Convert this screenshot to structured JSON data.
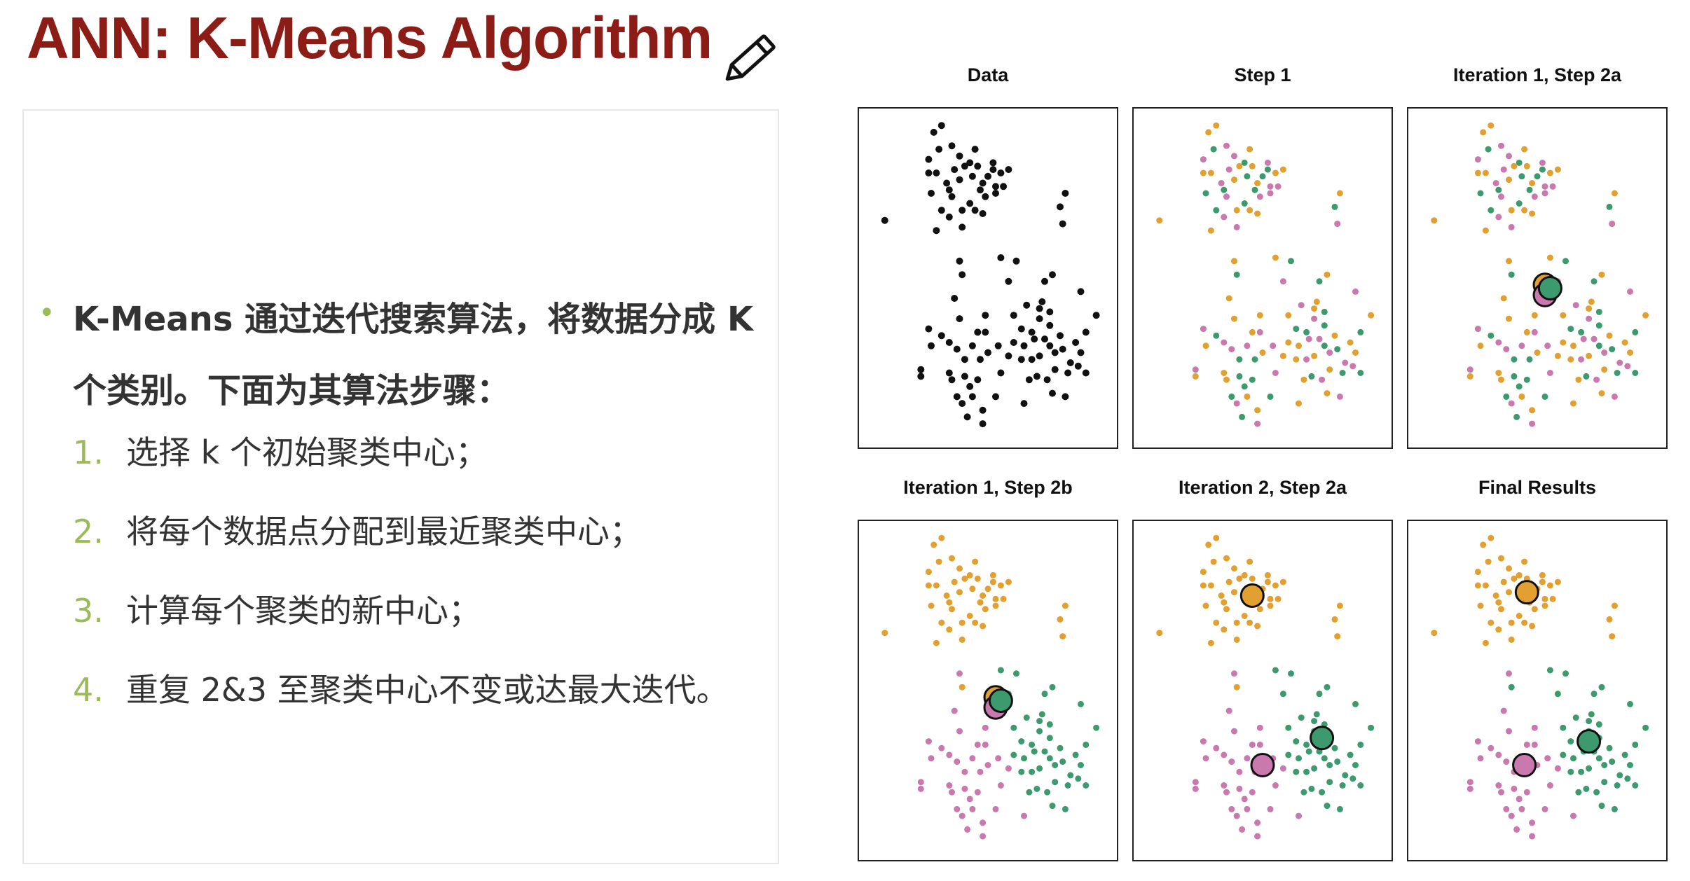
{
  "slide": {
    "title": "ANN: K-Means Algorithm",
    "bullet": "K-Means 通过迭代搜索算法，将数据分成 K 个类别。下面为其算法步骤：",
    "bullet_marker": "•",
    "steps": [
      {
        "num": "1.",
        "text": "选择 k 个初始聚类中心；"
      },
      {
        "num": "2.",
        "text": "将每个数据点分配到最近聚类中心；"
      },
      {
        "num": "3.",
        "text": "计算每个聚类的新中心；"
      },
      {
        "num": "4.",
        "text": "重复 2&3 至聚类中心不变或达最大迭代。"
      }
    ]
  },
  "colors": {
    "title": "#8c1c16",
    "accent": "#9bbb59",
    "point_unassigned": "#111111",
    "cluster_orange": "#e1a030",
    "cluster_green": "#3d9a6e",
    "cluster_pink": "#c979ad"
  },
  "icons": {
    "edit": "pencil-icon"
  },
  "chart_data": {
    "type": "scatter",
    "panels": [
      {
        "title": "Data",
        "mode": "data"
      },
      {
        "title": "Step 1",
        "mode": "random"
      },
      {
        "title": "Iteration 1, Step 2a",
        "mode": "random",
        "centroids": [
          {
            "c": 0,
            "x": 0.53,
            "y": 0.52
          },
          {
            "c": 2,
            "x": 0.53,
            "y": 0.55
          },
          {
            "c": 1,
            "x": 0.55,
            "y": 0.53
          }
        ]
      },
      {
        "title": "Iteration 1, Step 2b",
        "mode": "near",
        "centroids": [
          {
            "c": 0,
            "x": 0.53,
            "y": 0.52
          },
          {
            "c": 2,
            "x": 0.53,
            "y": 0.55
          },
          {
            "c": 1,
            "x": 0.55,
            "y": 0.53
          }
        ]
      },
      {
        "title": "Iteration 2, Step 2a",
        "mode": "near",
        "centroids": [
          {
            "c": 0,
            "x": 0.46,
            "y": 0.22
          },
          {
            "c": 1,
            "x": 0.73,
            "y": 0.64
          },
          {
            "c": 2,
            "x": 0.5,
            "y": 0.72
          }
        ]
      },
      {
        "title": "Final Results",
        "mode": "final",
        "centroids": [
          {
            "c": 0,
            "x": 0.46,
            "y": 0.21
          },
          {
            "c": 1,
            "x": 0.7,
            "y": 0.65
          },
          {
            "c": 2,
            "x": 0.45,
            "y": 0.72
          }
        ]
      }
    ],
    "points": [
      [
        0.1,
        0.33
      ],
      [
        0.27,
        0.15
      ],
      [
        0.32,
        0.05
      ],
      [
        0.36,
        0.11
      ],
      [
        0.31,
        0.12
      ],
      [
        0.27,
        0.19
      ],
      [
        0.39,
        0.14
      ],
      [
        0.43,
        0.16
      ],
      [
        0.46,
        0.17
      ],
      [
        0.52,
        0.16
      ],
      [
        0.55,
        0.19
      ],
      [
        0.56,
        0.23
      ],
      [
        0.44,
        0.2
      ],
      [
        0.41,
        0.17
      ],
      [
        0.36,
        0.26
      ],
      [
        0.3,
        0.19
      ],
      [
        0.28,
        0.25
      ],
      [
        0.34,
        0.22
      ],
      [
        0.39,
        0.21
      ],
      [
        0.5,
        0.2
      ],
      [
        0.49,
        0.26
      ],
      [
        0.48,
        0.22
      ],
      [
        0.47,
        0.24
      ],
      [
        0.53,
        0.25
      ],
      [
        0.58,
        0.18
      ],
      [
        0.43,
        0.28
      ],
      [
        0.48,
        0.31
      ],
      [
        0.35,
        0.32
      ],
      [
        0.4,
        0.3
      ],
      [
        0.32,
        0.3
      ],
      [
        0.3,
        0.36
      ],
      [
        0.53,
        0.23
      ],
      [
        0.45,
        0.12
      ],
      [
        0.52,
        0.18
      ],
      [
        0.37,
        0.18
      ],
      [
        0.29,
        0.07
      ],
      [
        0.8,
        0.25
      ],
      [
        0.78,
        0.29
      ],
      [
        0.79,
        0.34
      ],
      [
        0.45,
        0.3
      ],
      [
        0.35,
        0.24
      ],
      [
        0.4,
        0.35
      ],
      [
        0.39,
        0.45
      ],
      [
        0.4,
        0.49
      ],
      [
        0.37,
        0.56
      ],
      [
        0.27,
        0.65
      ],
      [
        0.28,
        0.7
      ],
      [
        0.32,
        0.67
      ],
      [
        0.38,
        0.71
      ],
      [
        0.39,
        0.62
      ],
      [
        0.41,
        0.74
      ],
      [
        0.44,
        0.7
      ],
      [
        0.46,
        0.66
      ],
      [
        0.47,
        0.74
      ],
      [
        0.5,
        0.72
      ],
      [
        0.49,
        0.66
      ],
      [
        0.35,
        0.78
      ],
      [
        0.38,
        0.85
      ],
      [
        0.4,
        0.87
      ],
      [
        0.44,
        0.85
      ],
      [
        0.46,
        0.8
      ],
      [
        0.55,
        0.78
      ],
      [
        0.49,
        0.61
      ],
      [
        0.41,
        0.79
      ],
      [
        0.36,
        0.8
      ],
      [
        0.24,
        0.77
      ],
      [
        0.24,
        0.79
      ],
      [
        0.42,
        0.91
      ],
      [
        0.48,
        0.93
      ],
      [
        0.48,
        0.89
      ],
      [
        0.43,
        0.82
      ],
      [
        0.54,
        0.7
      ],
      [
        0.58,
        0.73
      ],
      [
        0.53,
        0.85
      ],
      [
        0.64,
        0.87
      ],
      [
        0.35,
        0.69
      ],
      [
        0.55,
        0.44
      ],
      [
        0.61,
        0.45
      ],
      [
        0.58,
        0.51
      ],
      [
        0.6,
        0.61
      ],
      [
        0.63,
        0.65
      ],
      [
        0.65,
        0.58
      ],
      [
        0.71,
        0.57
      ],
      [
        0.74,
        0.6
      ],
      [
        0.64,
        0.7
      ],
      [
        0.68,
        0.68
      ],
      [
        0.7,
        0.73
      ],
      [
        0.74,
        0.7
      ],
      [
        0.76,
        0.72
      ],
      [
        0.78,
        0.67
      ],
      [
        0.79,
        0.71
      ],
      [
        0.82,
        0.75
      ],
      [
        0.84,
        0.69
      ],
      [
        0.88,
        0.66
      ],
      [
        0.92,
        0.61
      ],
      [
        0.86,
        0.54
      ],
      [
        0.75,
        0.49
      ],
      [
        0.72,
        0.51
      ],
      [
        0.67,
        0.74
      ],
      [
        0.66,
        0.8
      ],
      [
        0.69,
        0.79
      ],
      [
        0.73,
        0.8
      ],
      [
        0.76,
        0.77
      ],
      [
        0.81,
        0.78
      ],
      [
        0.75,
        0.84
      ],
      [
        0.8,
        0.85
      ],
      [
        0.86,
        0.72
      ],
      [
        0.88,
        0.78
      ],
      [
        0.7,
        0.62
      ],
      [
        0.6,
        0.69
      ],
      [
        0.67,
        0.66
      ],
      [
        0.72,
        0.68
      ],
      [
        0.63,
        0.74
      ],
      [
        0.74,
        0.64
      ],
      [
        0.7,
        0.59
      ],
      [
        0.85,
        0.76
      ]
    ],
    "random_assign": [
      0,
      2,
      0,
      2,
      1,
      0,
      2,
      1,
      0,
      2,
      0,
      2,
      1,
      0,
      2,
      0,
      1,
      2,
      0,
      1,
      2,
      0,
      1,
      2,
      0,
      1,
      0,
      2,
      0,
      1,
      0,
      2,
      0,
      1,
      2,
      0,
      0,
      1,
      2,
      0,
      1,
      2,
      0,
      1,
      0,
      2,
      0,
      1,
      2,
      0,
      1,
      2,
      0,
      1,
      0,
      2,
      0,
      1,
      2,
      0,
      1,
      2,
      0,
      1,
      0,
      2,
      0,
      1,
      2,
      0,
      1,
      2,
      0,
      1,
      0,
      2,
      0,
      1,
      2,
      0,
      1,
      2,
      0,
      1,
      0,
      2,
      0,
      1,
      2,
      0,
      1,
      2,
      0,
      1,
      0,
      2,
      0,
      1,
      2,
      0,
      1,
      2,
      0,
      1,
      0,
      2,
      0,
      1,
      2,
      0,
      1,
      2,
      0,
      1,
      0,
      2
    ],
    "near_assign": [
      0,
      0,
      0,
      0,
      0,
      0,
      0,
      0,
      0,
      0,
      0,
      0,
      0,
      0,
      0,
      0,
      0,
      0,
      0,
      0,
      0,
      0,
      0,
      0,
      0,
      0,
      0,
      0,
      0,
      0,
      0,
      0,
      0,
      0,
      0,
      0,
      0,
      0,
      0,
      0,
      0,
      0,
      2,
      0,
      2,
      2,
      2,
      2,
      2,
      2,
      2,
      2,
      2,
      2,
      2,
      2,
      2,
      2,
      2,
      2,
      2,
      2,
      2,
      2,
      2,
      2,
      2,
      2,
      2,
      2,
      2,
      2,
      2,
      2,
      2,
      2,
      1,
      1,
      1,
      1,
      1,
      1,
      1,
      1,
      1,
      1,
      1,
      1,
      1,
      1,
      1,
      1,
      1,
      1,
      1,
      1,
      1,
      1,
      1,
      1,
      1,
      1,
      1,
      1,
      1,
      1,
      1,
      1,
      1,
      1,
      1,
      1,
      1,
      1,
      1,
      1
    ],
    "final_assign": [
      0,
      0,
      0,
      0,
      0,
      0,
      0,
      0,
      0,
      0,
      0,
      0,
      0,
      0,
      0,
      0,
      0,
      0,
      0,
      0,
      0,
      0,
      0,
      0,
      0,
      0,
      0,
      0,
      0,
      0,
      0,
      0,
      0,
      0,
      0,
      0,
      0,
      0,
      0,
      0,
      0,
      0,
      2,
      1,
      2,
      2,
      2,
      2,
      2,
      2,
      2,
      2,
      2,
      2,
      2,
      2,
      2,
      2,
      2,
      2,
      2,
      2,
      2,
      2,
      2,
      2,
      2,
      2,
      2,
      2,
      2,
      2,
      2,
      2,
      2,
      2,
      1,
      1,
      1,
      1,
      1,
      1,
      1,
      1,
      1,
      1,
      1,
      1,
      1,
      1,
      1,
      1,
      1,
      1,
      1,
      1,
      1,
      1,
      1,
      1,
      1,
      1,
      1,
      1,
      1,
      1,
      1,
      1,
      1,
      1,
      1,
      1,
      1,
      1,
      1,
      1
    ]
  }
}
